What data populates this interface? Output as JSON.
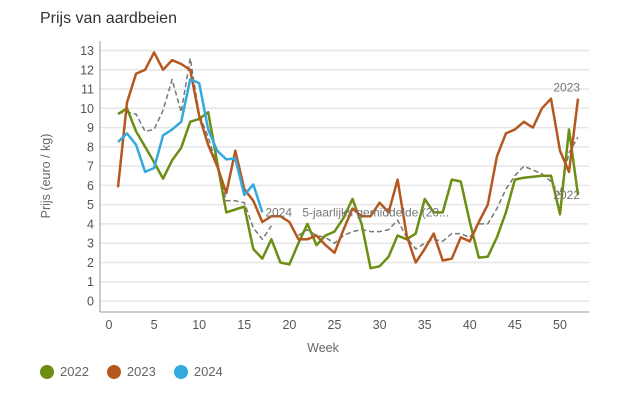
{
  "chart_data": {
    "type": "line",
    "title": "Prijs van aardbeien",
    "xlabel": "Week",
    "ylabel": "Prijs (euro / kg)",
    "xlim": [
      0,
      53
    ],
    "ylim": [
      -0.6,
      13.4
    ],
    "xticks": [
      0,
      5,
      10,
      15,
      20,
      25,
      30,
      35,
      40,
      45,
      50
    ],
    "yticks": [
      0,
      1,
      2,
      3,
      4,
      5,
      6,
      7,
      8,
      9,
      10,
      11,
      12,
      13
    ],
    "grid": "horizontal",
    "legend_position": "bottom-left",
    "series": [
      {
        "name": "2022",
        "color": "#6b8e13",
        "dash": false,
        "end_label": "2022",
        "values": [
          9.7,
          10.0,
          8.8,
          8.0,
          7.2,
          6.35,
          7.3,
          7.95,
          9.3,
          9.45,
          9.8,
          7.2,
          4.6,
          4.75,
          4.9,
          2.7,
          2.2,
          3.2,
          2.0,
          1.9,
          3.0,
          4.0,
          2.9,
          3.4,
          3.6,
          4.3,
          5.3,
          4.0,
          1.7,
          1.8,
          2.3,
          3.4,
          3.2,
          3.5,
          5.3,
          4.6,
          4.6,
          6.3,
          6.2,
          4.1,
          2.25,
          2.3,
          3.3,
          4.6,
          6.3,
          6.4,
          6.45,
          6.5,
          6.5,
          4.5,
          8.9,
          5.5
        ]
      },
      {
        "name": "2023",
        "color": "#b5581f",
        "dash": false,
        "end_label": "2023",
        "values": [
          5.9,
          10.3,
          11.8,
          12.0,
          12.9,
          12.0,
          12.5,
          12.3,
          12.0,
          9.6,
          8.1,
          7.0,
          5.6,
          7.8,
          5.8,
          5.2,
          4.1,
          4.4,
          4.4,
          4.1,
          3.2,
          3.2,
          3.4,
          2.9,
          2.5,
          3.7,
          4.8,
          4.4,
          4.4,
          5.1,
          4.6,
          6.3,
          3.4,
          2.0,
          2.7,
          3.5,
          2.1,
          2.2,
          3.3,
          3.1,
          4.1,
          5.0,
          7.5,
          8.7,
          8.9,
          9.3,
          9.0,
          10.0,
          10.5,
          7.8,
          6.7,
          10.5
        ]
      },
      {
        "name": "2024",
        "color": "#33aadd",
        "dash": false,
        "end_label": "2024",
        "values": [
          8.25,
          8.7,
          8.1,
          6.7,
          6.9,
          8.6,
          8.9,
          9.3,
          11.5,
          11.3,
          8.9,
          7.8,
          7.35,
          7.4,
          5.5,
          6.05,
          4.6
        ]
      },
      {
        "name": "5-jaarlijks gemiddelde",
        "color": "#777777",
        "dash": true,
        "end_label": "5-jaarlijks gemiddelde (20...",
        "values": [
          9.75,
          9.8,
          9.7,
          8.8,
          8.9,
          9.9,
          11.5,
          9.8,
          12.6,
          9.7,
          8.5,
          7.0,
          5.2,
          5.2,
          5.1,
          3.8,
          3.2,
          3.9,
          null,
          null,
          3.4,
          3.7,
          3.4,
          3.3,
          3.0,
          3.4,
          3.6,
          3.7,
          3.6,
          3.6,
          3.7,
          4.2,
          3.3,
          2.7,
          3.0,
          3.2,
          3.1,
          3.5,
          3.5,
          3.3,
          4.0,
          4.0,
          4.8,
          5.8,
          6.5,
          7.0,
          6.8,
          6.6,
          6.2,
          5.5,
          7.7,
          8.5
        ]
      }
    ]
  },
  "legend": [
    {
      "label": "2022",
      "color": "#6b8e13"
    },
    {
      "label": "2023",
      "color": "#b5581f"
    },
    {
      "label": "2024",
      "color": "#33aadd"
    }
  ]
}
